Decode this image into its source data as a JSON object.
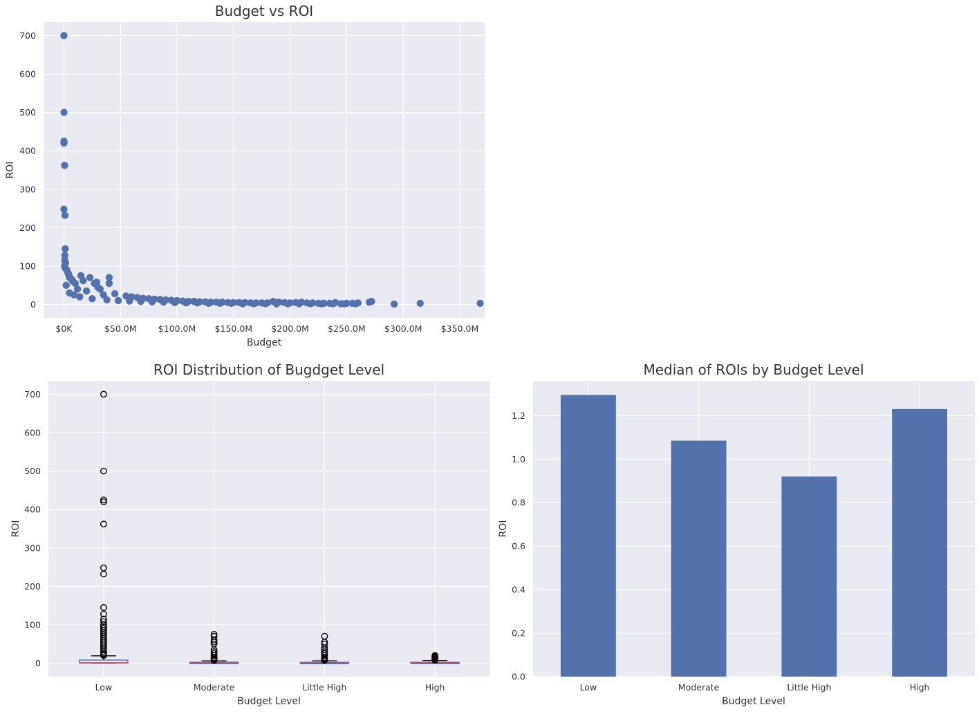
{
  "chart_data": [
    {
      "type": "scatter",
      "title": "Budget vs ROI",
      "xlabel": "Budget",
      "ylabel": "ROI",
      "xlim": [
        -18000000,
        372000000
      ],
      "ylim": [
        -35,
        735
      ],
      "x_ticks": [
        0,
        50000000,
        100000000,
        150000000,
        200000000,
        250000000,
        300000000,
        350000000
      ],
      "x_tick_labels": [
        "$0K",
        "$50.0M",
        "$100.0M",
        "$150.0M",
        "$200.0M",
        "$250.0M",
        "$300.0M",
        "$350.0M"
      ],
      "y_ticks": [
        0,
        100,
        200,
        300,
        400,
        500,
        600,
        700
      ],
      "y_tick_labels": [
        "0",
        "100",
        "200",
        "300",
        "400",
        "500",
        "600",
        "700"
      ],
      "grid": true,
      "color": "#5471ab",
      "x": [
        10000,
        60000,
        50000,
        30000,
        600000,
        20000,
        900000,
        1200000,
        800000,
        700000,
        1500000,
        600000,
        1100000,
        2500000,
        3000000,
        4000000,
        4500000,
        5000000,
        6000000,
        7000000,
        8000000,
        10000000,
        15000000,
        17000000,
        23000000,
        27000000,
        29000000,
        30000000,
        32000000,
        40000000,
        40000000,
        12000000,
        20000000,
        35000000,
        45000000,
        55000000,
        60000000,
        65000000,
        70000000,
        75000000,
        80000000,
        85000000,
        90000000,
        95000000,
        100000000,
        105000000,
        110000000,
        115000000,
        120000000,
        125000000,
        130000000,
        135000000,
        140000000,
        145000000,
        150000000,
        155000000,
        160000000,
        165000000,
        170000000,
        175000000,
        180000000,
        185000000,
        190000000,
        195000000,
        200000000,
        205000000,
        210000000,
        215000000,
        220000000,
        225000000,
        230000000,
        235000000,
        240000000,
        245000000,
        250000000,
        255000000,
        260000000,
        270000000,
        272000000,
        292000000,
        315000000,
        368000000,
        2000000,
        5000000,
        9000000,
        14000000,
        25000000,
        38000000,
        48000000,
        58000000,
        68000000,
        78000000,
        88000000,
        98000000,
        108000000,
        118000000,
        128000000,
        138000000,
        148000000,
        158000000,
        168000000,
        178000000,
        188000000,
        198000000,
        208000000,
        218000000,
        228000000,
        238000000,
        248000000,
        258000000
      ],
      "y": [
        700,
        500,
        425,
        420,
        362,
        248,
        232,
        145,
        128,
        115,
        108,
        100,
        95,
        90,
        85,
        80,
        75,
        70,
        68,
        65,
        60,
        55,
        75,
        62,
        70,
        55,
        58,
        45,
        40,
        70,
        55,
        40,
        35,
        25,
        28,
        22,
        20,
        18,
        16,
        15,
        14,
        13,
        12,
        11,
        10,
        9,
        8,
        8,
        7,
        7,
        6,
        6,
        6,
        5,
        5,
        5,
        5,
        4,
        4,
        4,
        4,
        8,
        6,
        5,
        4,
        5,
        6,
        4,
        4,
        3,
        3,
        3,
        5,
        2,
        3,
        3,
        4,
        6,
        8,
        1,
        3,
        3,
        50,
        30,
        25,
        20,
        15,
        12,
        10,
        9,
        8,
        7,
        6,
        5,
        4,
        4,
        3,
        3,
        3,
        2,
        2,
        2,
        2,
        2,
        2,
        2,
        2,
        2,
        2,
        2
      ]
    },
    {
      "type": "box",
      "title": "ROI Distribution of Bugdget Level",
      "xlabel": "Budget Level",
      "ylabel": "ROI",
      "categories": [
        "Low",
        "Moderate",
        "Little High",
        "High"
      ],
      "ylim": [
        -35,
        735
      ],
      "y_ticks": [
        0,
        100,
        200,
        300,
        400,
        500,
        600,
        700
      ],
      "y_tick_labels": [
        "0",
        "100",
        "200",
        "300",
        "400",
        "500",
        "600",
        "700"
      ],
      "grid": true,
      "boxes": [
        {
          "q1": 0.2,
          "median": 1.3,
          "q3": 8,
          "whisker_low": 0,
          "whisker_high": 19,
          "outliers": [
            700,
            500,
            425,
            420,
            362,
            248,
            232,
            145,
            128,
            115,
            108,
            100,
            95,
            90,
            85,
            80,
            75,
            70,
            65,
            60,
            55,
            50,
            45,
            40,
            35,
            30,
            25,
            22,
            20
          ]
        },
        {
          "q1": 0.3,
          "median": 1.08,
          "q3": 2.5,
          "whisker_low": 0,
          "whisker_high": 6,
          "outliers": [
            75,
            70,
            60,
            55,
            50,
            35,
            30,
            25,
            20,
            15,
            12,
            10,
            8,
            7
          ]
        },
        {
          "q1": 0.2,
          "median": 0.92,
          "q3": 2.2,
          "whisker_low": 0,
          "whisker_high": 6,
          "outliers": [
            70,
            55,
            50,
            40,
            35,
            30,
            25,
            20,
            15,
            12,
            10,
            8,
            7
          ]
        },
        {
          "q1": 0.5,
          "median": 1.23,
          "q3": 2.4,
          "whisker_low": 0,
          "whisker_high": 7,
          "outliers": [
            20,
            18,
            16,
            14,
            12,
            10,
            9,
            8
          ]
        }
      ]
    },
    {
      "type": "bar",
      "title": "Median of ROIs by Budget Level",
      "xlabel": "Budget Level",
      "ylabel": "ROI",
      "categories": [
        "Low",
        "Moderate",
        "Little High",
        "High"
      ],
      "values": [
        1.295,
        1.085,
        0.92,
        1.23
      ],
      "ylim": [
        0,
        1.36
      ],
      "y_ticks": [
        0.0,
        0.2,
        0.4,
        0.6,
        0.8,
        1.0,
        1.2
      ],
      "y_tick_labels": [
        "0.0",
        "0.2",
        "0.4",
        "0.6",
        "0.8",
        "1.0",
        "1.2"
      ],
      "grid": true,
      "color": "#5471ab"
    }
  ]
}
